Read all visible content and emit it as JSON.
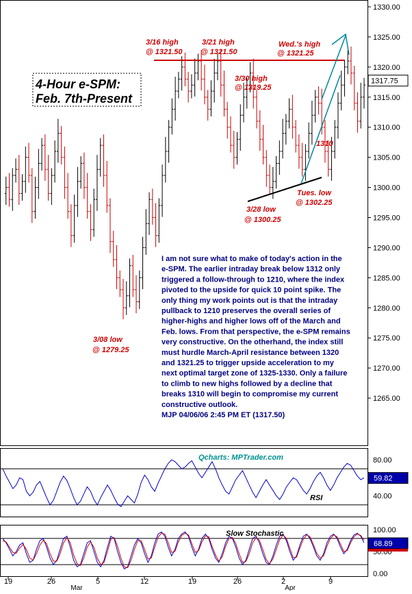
{
  "chart_data": [
    {
      "type": "ohlc",
      "title": "4-Hour e-SPM:",
      "subtitle": "Feb. 7th-Present",
      "ylim": [
        1260,
        1330
      ],
      "y_ticks": [
        "1330.00",
        "1325.00",
        "1320.00",
        "1315.00",
        "1310.00",
        "1305.00",
        "1300.00",
        "1295.00",
        "1290.00",
        "1285.00",
        "1280.00",
        "1275.00",
        "1270.00",
        "1265.00"
      ],
      "last_value": "1317.75",
      "price_series": [
        1299,
        1300,
        1298,
        1302,
        1303,
        1299,
        1301,
        1305,
        1302,
        1296,
        1300,
        1304,
        1307,
        1303,
        1299,
        1302,
        1306,
        1309,
        1305,
        1300,
        1296,
        1292,
        1297,
        1301,
        1304,
        1300,
        1296,
        1293,
        1298,
        1303,
        1307,
        1302,
        1297,
        1291,
        1288,
        1285,
        1283,
        1280,
        1282,
        1287,
        1283,
        1281,
        1285,
        1290,
        1294,
        1298,
        1295,
        1292,
        1297,
        1302,
        1306,
        1310,
        1313,
        1316,
        1318,
        1320,
        1318,
        1316,
        1317,
        1319,
        1321,
        1318,
        1315,
        1313,
        1316,
        1319,
        1321,
        1317,
        1313,
        1310,
        1307,
        1305,
        1308,
        1312,
        1315,
        1317,
        1319,
        1315,
        1311,
        1308,
        1305,
        1302,
        1300,
        1301,
        1304,
        1306,
        1309,
        1311,
        1313,
        1310,
        1307,
        1305,
        1303,
        1306,
        1309,
        1312,
        1315,
        1314,
        1310,
        1306,
        1303,
        1306,
        1310,
        1314,
        1317,
        1320,
        1321,
        1319,
        1314,
        1311,
        1315,
        1317
      ],
      "annotations": [
        {
          "lines": [
            "3/16 high",
            "@ 1321.50"
          ]
        },
        {
          "lines": [
            "3/21 high",
            "@ 1321.50"
          ]
        },
        {
          "lines": [
            "Wed.'s high",
            "@ 1321.25"
          ]
        },
        {
          "lines": [
            "3/30 high",
            "@ 1319.25"
          ]
        },
        {
          "lines": [
            "1310"
          ]
        },
        {
          "lines": [
            "Tues. low",
            "@ 1302.25"
          ]
        },
        {
          "lines": [
            "3/28 low",
            "@ 1300.25"
          ]
        },
        {
          "lines": [
            "3/08 low",
            "@ 1279.25"
          ]
        }
      ],
      "commentary": [
        "I am not sure what to make of today's action in the",
        "e-SPM. The earlier intraday break below 1312 only",
        "triggered a follow-through to 1210, where the index",
        "pivoted to the upside for quick 10 point spike. The",
        "only thing my work points out is that the intraday",
        "pullback to 1210 preserves the overall series of",
        "higher-highs and higher lows off of the March and",
        "Feb. lows.  From that perspective, the e-SPM remains",
        "very constructive. On the otherhand, the index still",
        "must hurdle March-April resistance between 1320",
        "and 1321.25 to trigger upside acceleration to my",
        "next optimal target zone of 1325-1330. Only a failure",
        "to climb to new highs followed by a decline that",
        "breaks 1310 will begin to compromise my current",
        "constructive outlook.",
        "MJP 04/06/06 2:45 PM ET  (1317.50)"
      ],
      "x_ticks": [
        "19",
        "26",
        "5",
        "12",
        "19",
        "26",
        "2",
        "9"
      ],
      "x_months": [
        "Mar",
        "Apr"
      ],
      "colors": {
        "up": "#000000",
        "down": "#cc0000",
        "annotation": "#cc0000",
        "text": "#000080",
        "resistance": "#cc0000",
        "support": "#000000",
        "channel": "#00879c"
      }
    },
    {
      "type": "line",
      "label": "RSI",
      "watermark": "Qcharts: MPTrader.com",
      "ylim": [
        20,
        90
      ],
      "y_ticks": [
        "80.00",
        "40.00"
      ],
      "last_value": "59.82",
      "values": [
        70,
        62,
        55,
        48,
        52,
        60,
        58,
        45,
        40,
        44,
        52,
        56,
        47,
        38,
        30,
        35,
        45,
        55,
        62,
        57,
        48,
        38,
        30,
        34,
        42,
        50,
        45,
        36,
        30,
        38,
        45,
        52,
        46,
        38,
        31,
        28,
        34,
        40,
        36,
        32,
        42,
        55,
        63,
        58,
        50,
        45,
        54,
        62,
        70,
        76,
        80,
        78,
        74,
        70,
        72,
        76,
        79,
        72,
        65,
        60,
        66,
        72,
        78,
        70,
        60,
        52,
        45,
        42,
        50,
        58,
        63,
        68,
        60,
        52,
        44,
        38,
        45,
        52,
        58,
        52,
        46,
        40,
        36,
        42,
        50,
        55,
        60,
        58,
        52,
        46,
        42,
        48,
        56,
        62,
        66,
        60,
        52,
        46,
        52,
        60,
        66,
        72,
        76,
        74,
        68,
        62,
        58,
        60
      ],
      "colors": {
        "line": "#0000cc",
        "reference": "#000000"
      }
    },
    {
      "type": "line",
      "label": "Slow Stochastic",
      "ylim": [
        -5,
        105
      ],
      "y_ticks": [
        "100.00",
        "50.00",
        "0.00"
      ],
      "last_value": "68.89",
      "series": [
        {
          "values": [
            80,
            70,
            55,
            40,
            50,
            65,
            70,
            45,
            25,
            30,
            55,
            75,
            80,
            60,
            35,
            20,
            30,
            55,
            80,
            85,
            60,
            30,
            15,
            20,
            45,
            70,
            75,
            50,
            25,
            15,
            30,
            60,
            85,
            80,
            50,
            25,
            10,
            15,
            40,
            65,
            80,
            70,
            45,
            25,
            40,
            70,
            90,
            95,
            85,
            60,
            40,
            55,
            80,
            90,
            95,
            85,
            60,
            40,
            55,
            80,
            90,
            80,
            55,
            35,
            25,
            45,
            70,
            85,
            80,
            60,
            35,
            20,
            30,
            55,
            80,
            85,
            70,
            45,
            25,
            20,
            40,
            65,
            85,
            90,
            75,
            50,
            30,
            40,
            65,
            85,
            90,
            80,
            60,
            40,
            30,
            45,
            70,
            85,
            90,
            80,
            60,
            45,
            55,
            75,
            88,
            92,
            85,
            70
          ]
        },
        {
          "values": [
            75,
            72,
            60,
            48,
            46,
            58,
            66,
            55,
            35,
            30,
            45,
            65,
            76,
            68,
            45,
            28,
            28,
            45,
            70,
            82,
            70,
            42,
            22,
            18,
            35,
            60,
            72,
            60,
            35,
            20,
            25,
            50,
            78,
            82,
            62,
            35,
            15,
            13,
            30,
            55,
            75,
            75,
            55,
            33,
            35,
            60,
            83,
            92,
            90,
            70,
            48,
            50,
            72,
            87,
            92,
            88,
            68,
            48,
            52,
            72,
            86,
            84,
            62,
            42,
            28,
            38,
            62,
            80,
            82,
            68,
            45,
            25,
            27,
            45,
            70,
            82,
            76,
            55,
            32,
            22,
            33,
            55,
            77,
            88,
            80,
            58,
            36,
            37,
            58,
            78,
            88,
            84,
            66,
            46,
            35,
            40,
            62,
            80,
            88,
            84,
            67,
            50,
            52,
            70,
            84,
            90,
            87,
            76
          ]
        }
      ],
      "colors": {
        "k": "#0000cc",
        "d": "#cc0000",
        "reference": "#000000"
      }
    }
  ]
}
